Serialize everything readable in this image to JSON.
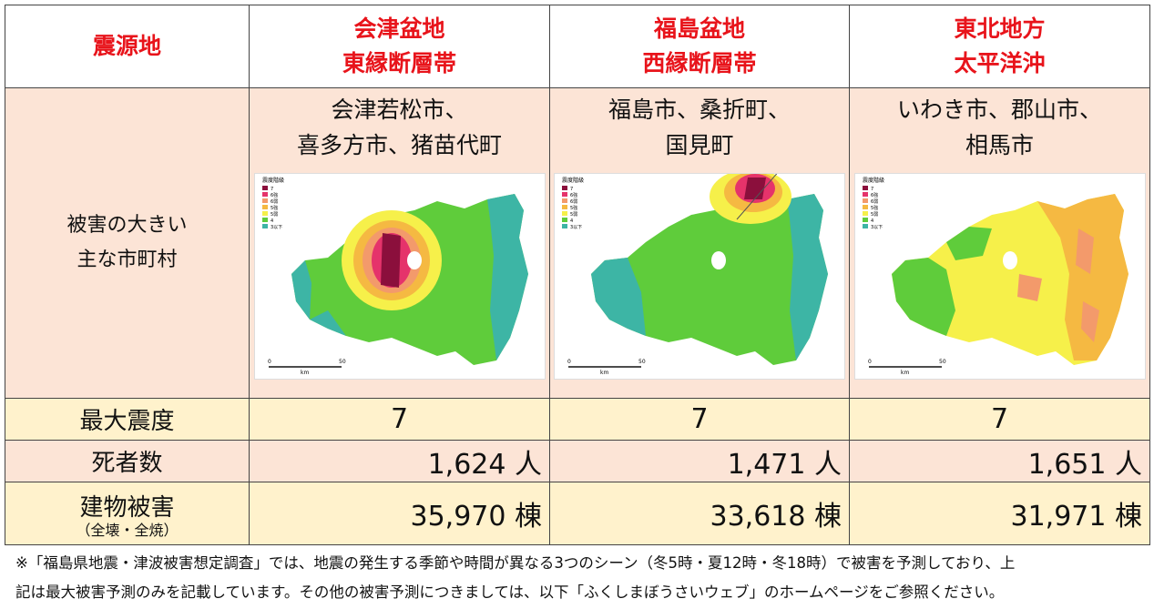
{
  "header": {
    "corner": "震源地",
    "columns": [
      {
        "line1": "会津盆地",
        "line2": "東縁断層帯"
      },
      {
        "line1": "福島盆地",
        "line2": "西縁断層帯"
      },
      {
        "line1": "東北地方",
        "line2": "太平洋沖"
      }
    ]
  },
  "damage_area": {
    "label_line1": "被害の大きい",
    "label_line2": "主な市町村",
    "columns": [
      {
        "cities_line1": "会津若松市、",
        "cities_line2": "喜多方市、猪苗代町"
      },
      {
        "cities_line1": "福島市、桑折町、",
        "cities_line2": "国見町"
      },
      {
        "cities_line1": "いわき市、郡山市、",
        "cities_line2": "相馬市"
      }
    ],
    "map_legend": {
      "title": "震度階級",
      "items": [
        {
          "label": "7",
          "color": "#8b0f3c"
        },
        {
          "label": "6強",
          "color": "#e5336b"
        },
        {
          "label": "6弱",
          "color": "#f39a6b"
        },
        {
          "label": "5強",
          "color": "#f5b942"
        },
        {
          "label": "5弱",
          "color": "#f6f04a"
        },
        {
          "label": "4",
          "color": "#5fcc3b"
        },
        {
          "label": "3以下",
          "color": "#3db5a5"
        }
      ],
      "scale_start": "0",
      "scale_end": "50",
      "scale_unit": "km"
    }
  },
  "max_intensity": {
    "label": "最大震度",
    "values": [
      "7",
      "7",
      "7"
    ]
  },
  "deaths": {
    "label": "死者数",
    "values": [
      "1,624 人",
      "1,471 人",
      "1,651 人"
    ]
  },
  "buildings": {
    "label": "建物被害",
    "sublabel": "（全壊・全焼）",
    "values": [
      "35,970 棟",
      "33,618 棟",
      "31,971 棟"
    ]
  },
  "note": {
    "line1": "※「福島県地震・津波被害想定調査」では、地震の発生する季節や時間が異なる3つのシーン（冬5時・夏12時・冬18時）で被害を予測しており、上",
    "line2": "記は最大被害予測のみを記載しています。その他の被害予測につきましては、以下「ふくしまぼうさいウェブ」のホームページをご参照ください。"
  }
}
